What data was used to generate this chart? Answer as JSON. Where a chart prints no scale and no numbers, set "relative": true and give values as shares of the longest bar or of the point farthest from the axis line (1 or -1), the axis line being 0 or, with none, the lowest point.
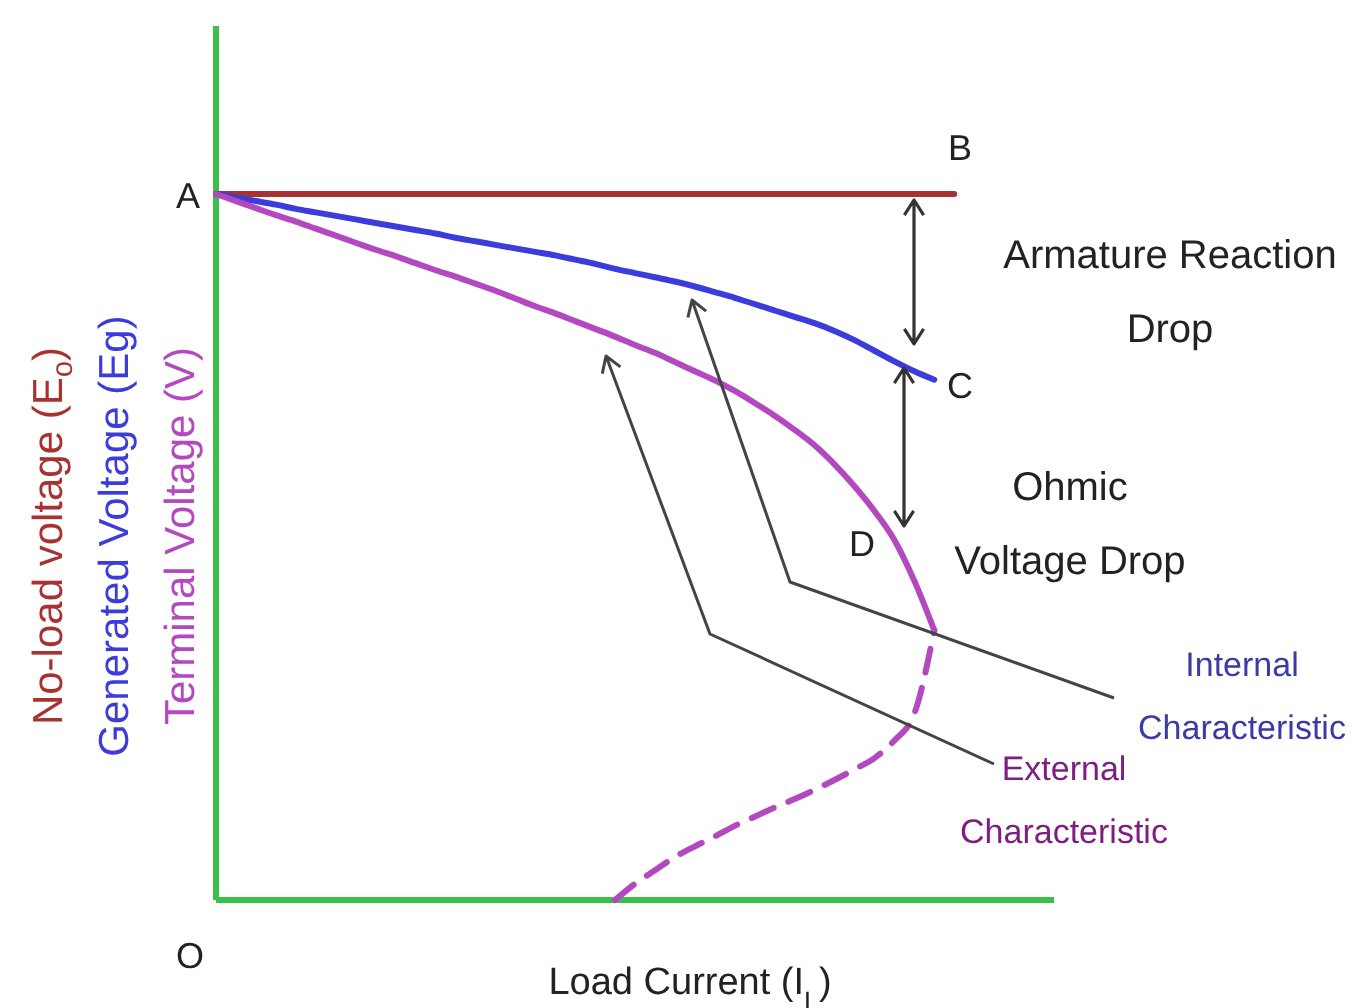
{
  "chart_data": {
    "type": "line",
    "relative": true,
    "xlabel": "Load Current (I$_{L}$)",
    "categories": [
      null,
      null,
      null,
      null,
      null,
      null,
      null,
      null,
      null,
      null,
      null,
      null,
      null,
      null,
      null,
      null,
      null,
      null,
      null,
      null,
      null,
      null,
      null,
      null,
      null,
      null,
      null,
      null,
      null,
      null,
      null,
      null,
      null,
      null,
      null,
      null,
      null,
      null,
      null,
      null,
      null,
      null,
      null
    ],
    "series": [
      {
        "name": "No-load voltage (E$_{o}$)",
        "color": "#a83232",
        "values": [
          1,
          1,
          1,
          1,
          1,
          1,
          1,
          1,
          1,
          1,
          1,
          1,
          1,
          1,
          1,
          1,
          1,
          1,
          1,
          1,
          1,
          1,
          1,
          1,
          1,
          1,
          1,
          1,
          1,
          1,
          1,
          1,
          1,
          1,
          1,
          1,
          1,
          1,
          null,
          null,
          null,
          null,
          null
        ]
      },
      {
        "name": "Generated Voltage (Eg)",
        "color": "#3c3cdc",
        "values": [
          1,
          0.995,
          0.99,
          0.985,
          0.979,
          0.974,
          0.969,
          0.964,
          0.959,
          0.954,
          0.949,
          0.944,
          0.938,
          0.933,
          0.928,
          0.923,
          0.918,
          0.913,
          0.907,
          0.901,
          0.894,
          0.888,
          0.882,
          0.876,
          0.869,
          0.861,
          0.853,
          0.844,
          0.835,
          0.826,
          0.817,
          0.806,
          0.793,
          0.778,
          0.763,
          0.749,
          0.737,
          null,
          null,
          null,
          null,
          null,
          null
        ]
      },
      {
        "name": "Terminal Voltage (V)",
        "color": "#b348c0",
        "values": [
          1,
          0.99,
          0.98,
          0.97,
          0.961,
          0.951,
          0.941,
          0.931,
          0.921,
          0.912,
          0.902,
          0.892,
          0.883,
          0.873,
          0.863,
          0.852,
          0.841,
          0.831,
          0.82,
          0.809,
          0.798,
          0.786,
          0.775,
          0.762,
          0.749,
          0.736,
          0.721,
          0.704,
          0.686,
          0.666,
          0.644,
          0.617,
          0.586,
          0.551,
          0.51,
          0.452,
          0.382,
          null,
          null,
          null,
          null,
          null,
          null
        ]
      },
      {
        "color": "#b348c0",
        "line_style": "dashed",
        "values": [
          null,
          null,
          null,
          null,
          null,
          null,
          null,
          null,
          null,
          null,
          null,
          null,
          null,
          null,
          null,
          null,
          null,
          null,
          null,
          null,
          0,
          0.023,
          0.042,
          0.061,
          0.076,
          0.09,
          0.105,
          0.118,
          0.131,
          0.143,
          0.156,
          0.17,
          0.185,
          0.201,
          0.226,
          0.264,
          0.382,
          null,
          null,
          null,
          null,
          null,
          null
        ]
      }
    ],
    "annotations": [
      "A",
      "B",
      "C",
      "D",
      "O",
      "Armature Reaction Drop",
      "Ohmic Voltage Drop",
      "Internal Characteristic",
      "External Characteristic"
    ]
  }
}
